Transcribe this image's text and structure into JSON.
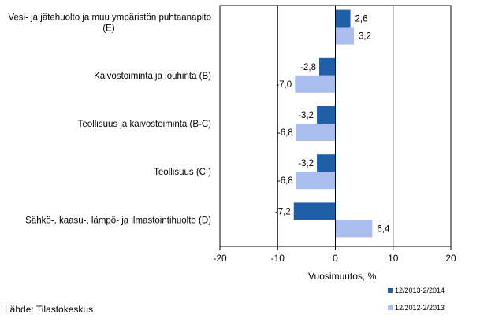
{
  "chart_data": {
    "type": "bar",
    "orientation": "horizontal",
    "categories": [
      [
        "Vesi- ja jätehuolto ja muu ympäristön puhtaanapito",
        "(E)"
      ],
      [
        "Kaivostoiminta ja louhinta (B)"
      ],
      [
        "Teollisuus ja kaivostoiminta (B-C)"
      ],
      [
        "Teollisuus (C )"
      ],
      [
        "Sähkö-, kaasu-, lämpö- ja ilmastointihuolto (D)"
      ]
    ],
    "series": [
      {
        "name": "12/2013-2/2014",
        "color": "#1f5fa8",
        "values": [
          2.6,
          -2.8,
          -3.2,
          -3.2,
          -7.2
        ],
        "labels": [
          "2,6",
          "-2,8",
          "-3,2",
          "-3,2",
          "-7,2"
        ]
      },
      {
        "name": "12/2012-2/2013",
        "color": "#a9bdee",
        "values": [
          3.2,
          -7.0,
          -6.8,
          -6.8,
          6.4
        ],
        "labels": [
          "3,2",
          "-7,0",
          "-6,8",
          "-6,8",
          "6,4"
        ]
      }
    ],
    "xlim": [
      -20,
      20
    ],
    "xticks": [
      -20,
      -10,
      0,
      10,
      20
    ],
    "xtick_labels": [
      "-20",
      "-10",
      "0",
      "10",
      "20"
    ],
    "gridlines_at": [
      -10,
      10
    ],
    "xlabel": "Vuosimuutos, %",
    "legend_position": "bottom-right"
  },
  "source": "Lähde: Tilastokeskus"
}
